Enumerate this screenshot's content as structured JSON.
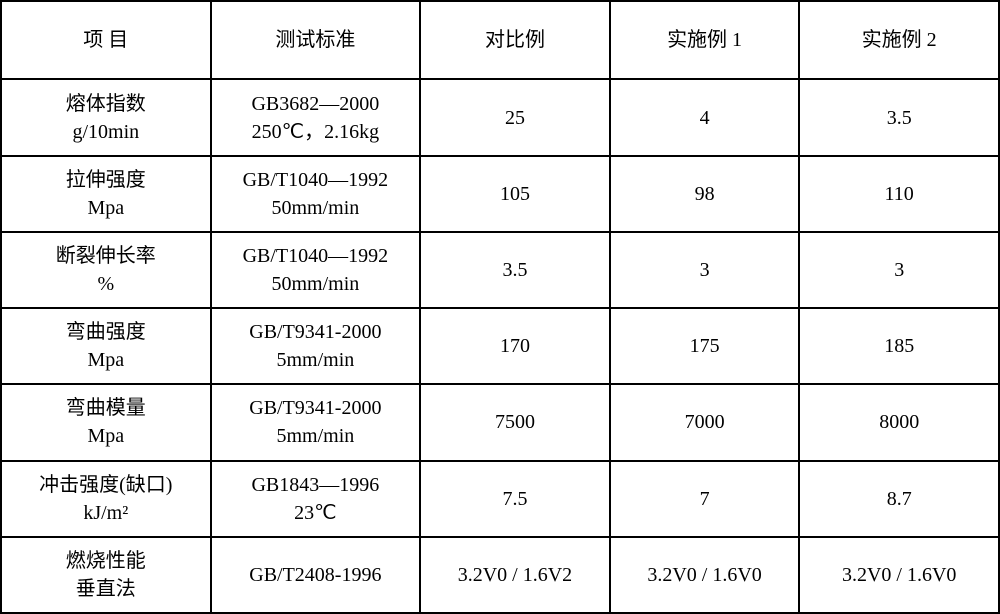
{
  "table": {
    "columns": [
      "项 目",
      "测试标准",
      "对比例",
      "实施例 1",
      "实施例 2"
    ],
    "rows": [
      {
        "item_line1": "熔体指数",
        "item_line2": "g/10min",
        "standard_line1": "GB3682—2000",
        "standard_line2": "250℃，2.16kg",
        "compare": "25",
        "example1": "4",
        "example2": "3.5"
      },
      {
        "item_line1": "拉伸强度",
        "item_line2": "Mpa",
        "standard_line1": "GB/T1040—1992",
        "standard_line2": "50mm/min",
        "compare": "105",
        "example1": "98",
        "example2": "110"
      },
      {
        "item_line1": "断裂伸长率",
        "item_line2": "%",
        "standard_line1": "GB/T1040—1992",
        "standard_line2": "50mm/min",
        "compare": "3.5",
        "example1": "3",
        "example2": "3"
      },
      {
        "item_line1": "弯曲强度",
        "item_line2": "Mpa",
        "standard_line1": "GB/T9341-2000",
        "standard_line2": "5mm/min",
        "compare": "170",
        "example1": "175",
        "example2": "185"
      },
      {
        "item_line1": "弯曲模量",
        "item_line2": "Mpa",
        "standard_line1": "GB/T9341-2000",
        "standard_line2": "5mm/min",
        "compare": "7500",
        "example1": "7000",
        "example2": "8000"
      },
      {
        "item_line1": "冲击强度(缺口)",
        "item_line2": "kJ/m²",
        "standard_line1": "GB1843—1996",
        "standard_line2": "23℃",
        "compare": "7.5",
        "example1": "7",
        "example2": "8.7"
      },
      {
        "item_line1": "燃烧性能",
        "item_line2": "垂直法",
        "standard_line1": "GB/T2408-1996",
        "standard_line2": "",
        "compare": "3.2V0 / 1.6V2",
        "example1": "3.2V0 / 1.6V0",
        "example2": "3.2V0 / 1.6V0"
      }
    ],
    "border_color": "#000000",
    "background_color": "#ffffff",
    "text_color": "#000000",
    "font_size": 20
  }
}
